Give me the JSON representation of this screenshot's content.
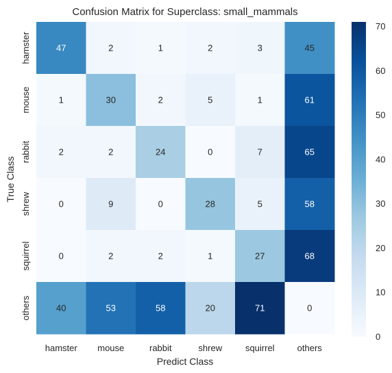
{
  "chart_data": {
    "type": "heatmap",
    "title": "Confusion Matrix for Superclass: small_mammals",
    "xlabel": "Predict Class",
    "ylabel": "True Class",
    "x_categories": [
      "hamster",
      "mouse",
      "rabbit",
      "shrew",
      "squirrel",
      "others"
    ],
    "y_categories": [
      "hamster",
      "mouse",
      "rabbit",
      "shrew",
      "squirrel",
      "others"
    ],
    "values": [
      [
        47,
        2,
        1,
        2,
        3,
        45
      ],
      [
        1,
        30,
        2,
        5,
        1,
        61
      ],
      [
        2,
        2,
        24,
        0,
        7,
        65
      ],
      [
        0,
        9,
        0,
        28,
        5,
        58
      ],
      [
        0,
        2,
        2,
        1,
        27,
        68
      ],
      [
        40,
        53,
        58,
        20,
        71,
        0
      ]
    ],
    "colorscale": "Blues",
    "vmin": 0,
    "vmax": 71,
    "colorbar_ticks": [
      0,
      10,
      20,
      30,
      40,
      50,
      60,
      70
    ]
  }
}
